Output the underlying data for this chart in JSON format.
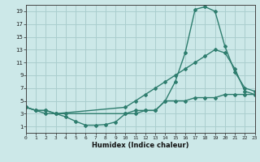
{
  "line1_x": [
    0,
    1,
    2,
    3,
    4,
    10,
    11,
    12,
    13,
    14,
    15,
    16,
    17,
    18,
    19,
    20,
    21,
    22,
    23
  ],
  "line1_y": [
    4,
    3.5,
    3.5,
    3,
    3,
    3,
    3,
    3.5,
    3.5,
    5,
    8,
    12.5,
    19.3,
    19.7,
    19,
    13.5,
    9.5,
    7,
    6.5
  ],
  "line2_x": [
    0,
    1,
    2,
    3,
    10,
    11,
    12,
    13,
    14,
    15,
    16,
    17,
    18,
    19,
    20,
    21,
    22,
    23
  ],
  "line2_y": [
    4,
    3.5,
    3.5,
    3,
    4,
    5,
    6,
    7,
    8,
    9,
    10,
    11,
    12,
    13,
    12.5,
    10,
    6.5,
    6
  ],
  "line3_x": [
    0,
    1,
    2,
    3,
    4,
    5,
    6,
    7,
    8,
    9,
    10,
    11,
    12,
    13,
    14,
    15,
    16,
    17,
    18,
    19,
    20,
    21,
    22,
    23
  ],
  "line3_y": [
    4,
    3.5,
    3,
    3,
    2.5,
    1.8,
    1.2,
    1.2,
    1.3,
    1.7,
    3,
    3.5,
    3.5,
    3.5,
    5,
    5,
    5,
    5.5,
    5.5,
    5.5,
    6,
    6,
    6,
    6
  ],
  "line_color": "#2e7d6e",
  "bg_color": "#cce8e8",
  "grid_color": "#aacece",
  "xlabel": "Humidex (Indice chaleur)",
  "xlim": [
    0,
    23
  ],
  "ylim": [
    0,
    20
  ],
  "yticks": [
    1,
    3,
    5,
    7,
    9,
    11,
    13,
    15,
    17,
    19
  ],
  "xticks": [
    0,
    1,
    2,
    3,
    4,
    5,
    6,
    7,
    8,
    9,
    10,
    11,
    12,
    13,
    14,
    15,
    16,
    17,
    18,
    19,
    20,
    21,
    22,
    23
  ],
  "marker": "D",
  "markersize": 2.0,
  "linewidth": 1.0
}
